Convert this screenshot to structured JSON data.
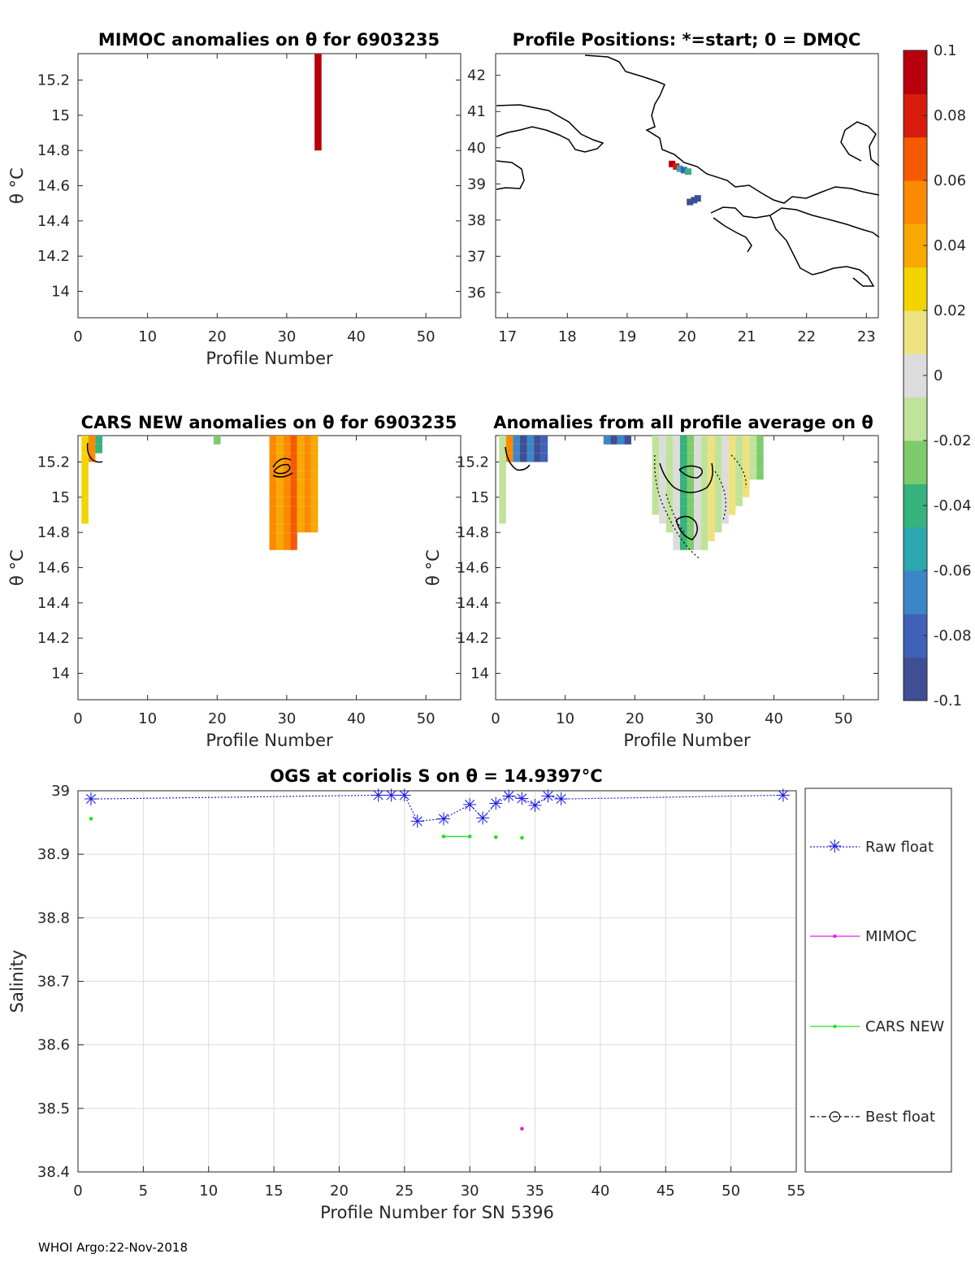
{
  "footer": "WHOI Argo:22-Nov-2018",
  "colorbar": {
    "ticks": [
      "0.1",
      "0.08",
      "0.06",
      "0.04",
      "0.02",
      "0",
      "-0.02",
      "-0.04",
      "-0.06",
      "-0.08",
      "-0.1"
    ],
    "colors": [
      "#3e4f93",
      "#3f62b8",
      "#3d86c8",
      "#2ba7b0",
      "#36b27c",
      "#7ecb6c",
      "#bfe39a",
      "#dcdcdc",
      "#eee27e",
      "#f2d400",
      "#f7a900",
      "#fb8a00",
      "#f65a00",
      "#d71b0c",
      "#b8000e"
    ]
  },
  "panels": {
    "mimoc": {
      "title": "MIMOC anomalies on θ  for 6903235",
      "ylabel": "θ °C",
      "xlabel": "Profile Number",
      "xticks": [
        "0",
        "10",
        "20",
        "30",
        "40",
        "50"
      ],
      "yticks": [
        "15.2",
        "15",
        "14.8",
        "14.6",
        "14.4",
        "14.2",
        "14"
      ]
    },
    "positions": {
      "title": "Profile Positions: *=start; 0 = DMQC",
      "xticks": [
        "17",
        "18",
        "19",
        "20",
        "21",
        "22",
        "23"
      ],
      "yticks": [
        "42",
        "41",
        "40",
        "39",
        "38",
        "37",
        "36"
      ]
    },
    "cars": {
      "title": "CARS NEW anomalies on θ for 6903235",
      "ylabel": "θ °C",
      "xlabel": "Profile Number",
      "xticks": [
        "0",
        "10",
        "20",
        "30",
        "40",
        "50"
      ],
      "yticks": [
        "15.2",
        "15",
        "14.8",
        "14.6",
        "14.4",
        "14.2",
        "14"
      ]
    },
    "allavg": {
      "title": "Anomalies from all profile average on θ",
      "ylabel": "θ °C",
      "xlabel": "Profile Number",
      "xticks": [
        "0",
        "10",
        "20",
        "30",
        "40",
        "50"
      ],
      "yticks": [
        "15.2",
        "15",
        "14.8",
        "14.6",
        "14.4",
        "14.2",
        "14"
      ]
    },
    "salinity": {
      "title": "OGS at coriolis S on θ = 14.9397°C",
      "ylabel": "Salinity",
      "xlabel": "Profile Number for SN 5396",
      "xticks": [
        "0",
        "5",
        "10",
        "15",
        "20",
        "25",
        "30",
        "35",
        "40",
        "45",
        "50",
        "55"
      ],
      "yticks": [
        "39",
        "38.9",
        "38.8",
        "38.7",
        "38.6",
        "38.5",
        "38.4"
      ]
    }
  },
  "legend": {
    "raw": "Raw float",
    "mimoc": "MIMOC",
    "cars": "CARS NEW",
    "best": "Best float"
  },
  "chart_data": [
    {
      "type": "heatmap",
      "title": "MIMOC anomalies on θ  for 6903235",
      "xlabel": "Profile Number",
      "ylabel": "θ °C",
      "xlim": [
        0,
        55
      ],
      "ylim": [
        13.85,
        15.35
      ],
      "cells": [
        {
          "x": 34.5,
          "y_from": 14.8,
          "y_to": 15.35,
          "value": 0.1
        }
      ]
    },
    {
      "type": "scatter",
      "title": "Profile Positions: *=start; 0 = DMQC",
      "xlim": [
        16.8,
        23.2
      ],
      "ylim": [
        35.3,
        42.6
      ],
      "points": [
        {
          "lon": 19.75,
          "lat": 39.55,
          "value": 0.1
        },
        {
          "lon": 19.82,
          "lat": 39.48,
          "value": 0.08
        },
        {
          "lon": 19.88,
          "lat": 39.42,
          "value": -0.06
        },
        {
          "lon": 19.95,
          "lat": 39.38,
          "value": -0.08
        },
        {
          "lon": 20.02,
          "lat": 39.34,
          "value": -0.04
        },
        {
          "lon": 20.12,
          "lat": 38.55,
          "value": -0.09
        },
        {
          "lon": 20.18,
          "lat": 38.6,
          "value": -0.09
        },
        {
          "lon": 20.05,
          "lat": 38.5,
          "value": -0.09
        }
      ]
    },
    {
      "type": "heatmap",
      "title": "CARS NEW anomalies on θ for 6903235",
      "xlabel": "Profile Number",
      "ylabel": "θ °C",
      "xlim": [
        0,
        55
      ],
      "ylim": [
        13.85,
        15.35
      ],
      "columns": [
        {
          "x": 1,
          "y_from": 14.85,
          "y_to": 15.35,
          "value": 0.04
        },
        {
          "x": 2,
          "y_from": 15.2,
          "y_to": 15.35,
          "value": 0.06
        },
        {
          "x": 3,
          "y_from": 15.25,
          "y_to": 15.35,
          "value": -0.05
        },
        {
          "x": 20,
          "y_from": 15.3,
          "y_to": 15.35,
          "value": -0.02
        },
        {
          "x": 28,
          "y_from": 14.7,
          "y_to": 15.35,
          "value": 0.05
        },
        {
          "x": 29,
          "y_from": 14.7,
          "y_to": 15.35,
          "value": 0.05
        },
        {
          "x": 30,
          "y_from": 14.7,
          "y_to": 15.35,
          "value": 0.05
        },
        {
          "x": 31,
          "y_from": 14.7,
          "y_to": 15.35,
          "value": 0.05
        },
        {
          "x": 32,
          "y_from": 14.8,
          "y_to": 15.35,
          "value": 0.05
        },
        {
          "x": 33,
          "y_from": 14.8,
          "y_to": 15.35,
          "value": 0.05
        },
        {
          "x": 34,
          "y_from": 14.8,
          "y_to": 15.35,
          "value": 0.05
        }
      ]
    },
    {
      "type": "heatmap",
      "title": "Anomalies from all profile average on θ",
      "xlabel": "Profile Number",
      "ylabel": "θ °C",
      "xlim": [
        0,
        55
      ],
      "ylim": [
        13.85,
        15.35
      ],
      "columns": [
        {
          "x": 1,
          "y_from": 14.85,
          "y_to": 15.35,
          "value": 0.0
        },
        {
          "x": 2,
          "y_from": 15.2,
          "y_to": 15.35,
          "value": 0.06
        },
        {
          "x": 3,
          "y_from": 15.2,
          "y_to": 15.35,
          "value": -0.08
        },
        {
          "x": 4,
          "y_from": 15.2,
          "y_to": 15.35,
          "value": -0.08
        },
        {
          "x": 5,
          "y_from": 15.2,
          "y_to": 15.35,
          "value": -0.08
        },
        {
          "x": 6,
          "y_from": 15.2,
          "y_to": 15.35,
          "value": -0.08
        },
        {
          "x": 7,
          "y_from": 15.2,
          "y_to": 15.35,
          "value": -0.08
        },
        {
          "x": 16,
          "y_from": 15.3,
          "y_to": 15.35,
          "value": -0.08
        },
        {
          "x": 17,
          "y_from": 15.3,
          "y_to": 15.35,
          "value": -0.08
        },
        {
          "x": 18,
          "y_from": 15.3,
          "y_to": 15.35,
          "value": -0.08
        },
        {
          "x": 19,
          "y_from": 15.3,
          "y_to": 15.35,
          "value": -0.08
        },
        {
          "x": 23,
          "y_from": 14.9,
          "y_to": 15.35,
          "value": -0.01
        },
        {
          "x": 24,
          "y_from": 14.85,
          "y_to": 15.35,
          "value": -0.01
        },
        {
          "x": 25,
          "y_from": 14.8,
          "y_to": 15.35,
          "value": -0.01
        },
        {
          "x": 26,
          "y_from": 14.7,
          "y_to": 15.35,
          "value": -0.01
        },
        {
          "x": 27,
          "y_from": 14.7,
          "y_to": 15.35,
          "value": -0.02
        },
        {
          "x": 28,
          "y_from": 14.7,
          "y_to": 15.35,
          "value": -0.02
        },
        {
          "x": 29,
          "y_from": 14.7,
          "y_to": 15.35,
          "value": -0.01
        },
        {
          "x": 30,
          "y_from": 14.7,
          "y_to": 15.35,
          "value": 0.0
        },
        {
          "x": 31,
          "y_from": 14.75,
          "y_to": 15.35,
          "value": 0.0
        },
        {
          "x": 32,
          "y_from": 14.8,
          "y_to": 15.35,
          "value": 0.0
        },
        {
          "x": 33,
          "y_from": 14.85,
          "y_to": 15.35,
          "value": 0.0
        },
        {
          "x": 34,
          "y_from": 14.9,
          "y_to": 15.35,
          "value": 0.0
        },
        {
          "x": 35,
          "y_from": 14.95,
          "y_to": 15.35,
          "value": 0.0
        },
        {
          "x": 36,
          "y_from": 15.0,
          "y_to": 15.35,
          "value": 0.0
        },
        {
          "x": 37,
          "y_from": 15.1,
          "y_to": 15.35,
          "value": 0.0
        },
        {
          "x": 38,
          "y_from": 15.1,
          "y_to": 15.35,
          "value": -0.02
        }
      ]
    },
    {
      "type": "line",
      "title": "OGS at coriolis S on θ = 14.9397°C",
      "xlabel": "Profile Number for SN 5396",
      "ylabel": "Salinity",
      "xlim": [
        0,
        55
      ],
      "ylim": [
        38.4,
        39
      ],
      "series": [
        {
          "name": "Raw float",
          "style": "blue dotted with star markers",
          "x": [
            1,
            23,
            24,
            25,
            26,
            28,
            30,
            31,
            32,
            33,
            34,
            35,
            36,
            37,
            54
          ],
          "y": [
            38.987,
            38.993,
            38.993,
            38.993,
            38.952,
            38.956,
            38.978,
            38.957,
            38.98,
            38.992,
            38.988,
            38.977,
            38.992,
            38.987,
            38.993
          ]
        },
        {
          "name": "MIMOC",
          "style": "magenta line with dots",
          "x": [
            34
          ],
          "y": [
            38.468
          ]
        },
        {
          "name": "CARS NEW",
          "style": "green line with dots",
          "x": [
            1,
            28,
            30,
            32,
            34
          ],
          "y": [
            38.956,
            38.928,
            38.928,
            38.927,
            38.926
          ]
        },
        {
          "name": "Best float",
          "style": "black dash-dot with circles",
          "x": [],
          "y": []
        }
      ]
    }
  ]
}
